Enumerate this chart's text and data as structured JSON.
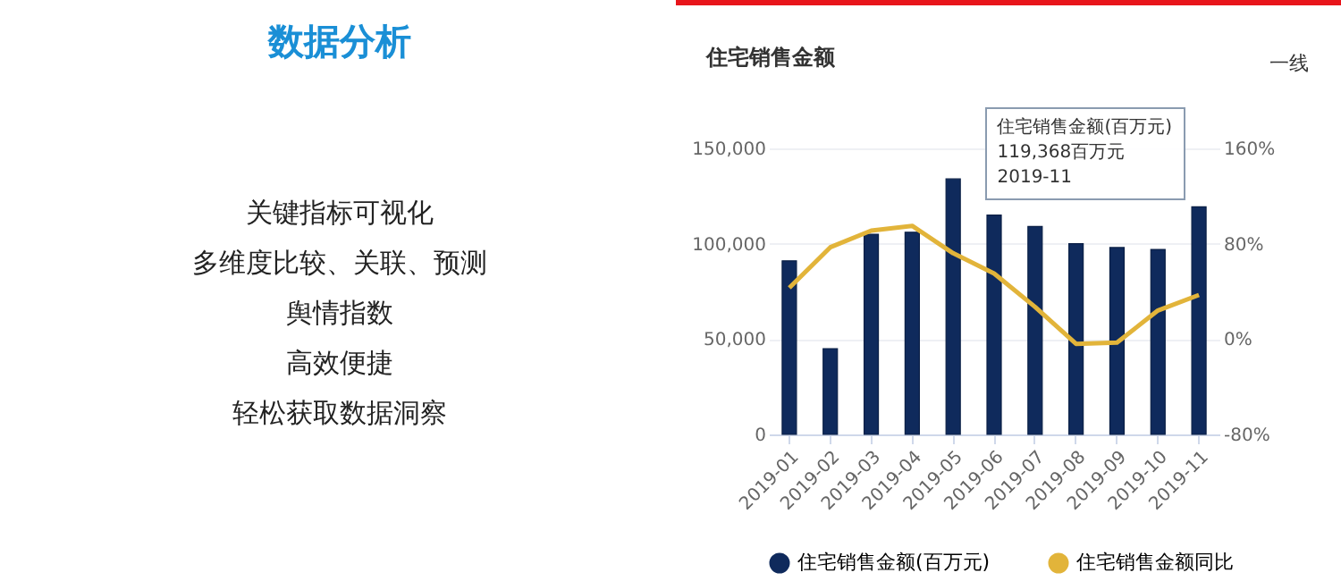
{
  "chart_data": [
    {
      "type": "other",
      "title": "数据分析",
      "annotations": [
        "关键指标可视化",
        "多维度比较、关联、预测",
        "舆情指数",
        "高效便捷",
        "轻松获取数据洞察"
      ]
    },
    {
      "type": "bar",
      "title": "住宅销售金额",
      "categories": [
        "2019-01",
        "2019-02",
        "2019-03",
        "2019-04",
        "2019-05",
        "2019-06",
        "2019-07",
        "2019-08",
        "2019-09",
        "2019-10",
        "2019-11"
      ],
      "series": [
        {
          "name": "住宅销售金额(百万元)",
          "color": "#0f2a5c",
          "values": [
            91000,
            45000,
            105000,
            106000,
            134000,
            115000,
            109000,
            100000,
            98000,
            97000,
            119368
          ]
        },
        {
          "name": "住宅销售金额同比",
          "color": "#e2b43a",
          "type": "line",
          "axis": "y2",
          "values": [
            43,
            77,
            91,
            95,
            72,
            55,
            27,
            -4,
            -3,
            24,
            37
          ]
        }
      ],
      "ylim": [
        0,
        150000
      ],
      "yticks": [
        {
          "value": 0,
          "label": "0"
        },
        {
          "value": 50000,
          "label": "50,000"
        },
        {
          "value": 100000,
          "label": "100,000"
        },
        {
          "value": 150000,
          "label": "150,000"
        }
      ],
      "y2lim": [
        -80,
        160
      ],
      "y2ticks": [
        {
          "value": -80,
          "label": "-80%"
        },
        {
          "value": 0,
          "label": "0%"
        },
        {
          "value": 80,
          "label": "80%"
        },
        {
          "value": 160,
          "label": "160%"
        }
      ],
      "grid": "y",
      "legend": "bottom",
      "annotations": [
        "一线",
        {
          "text": "住宅销售金额(百万元)\n119,368百万元\n2019-11",
          "x": "2019-11",
          "y": 119368
        }
      ]
    }
  ]
}
